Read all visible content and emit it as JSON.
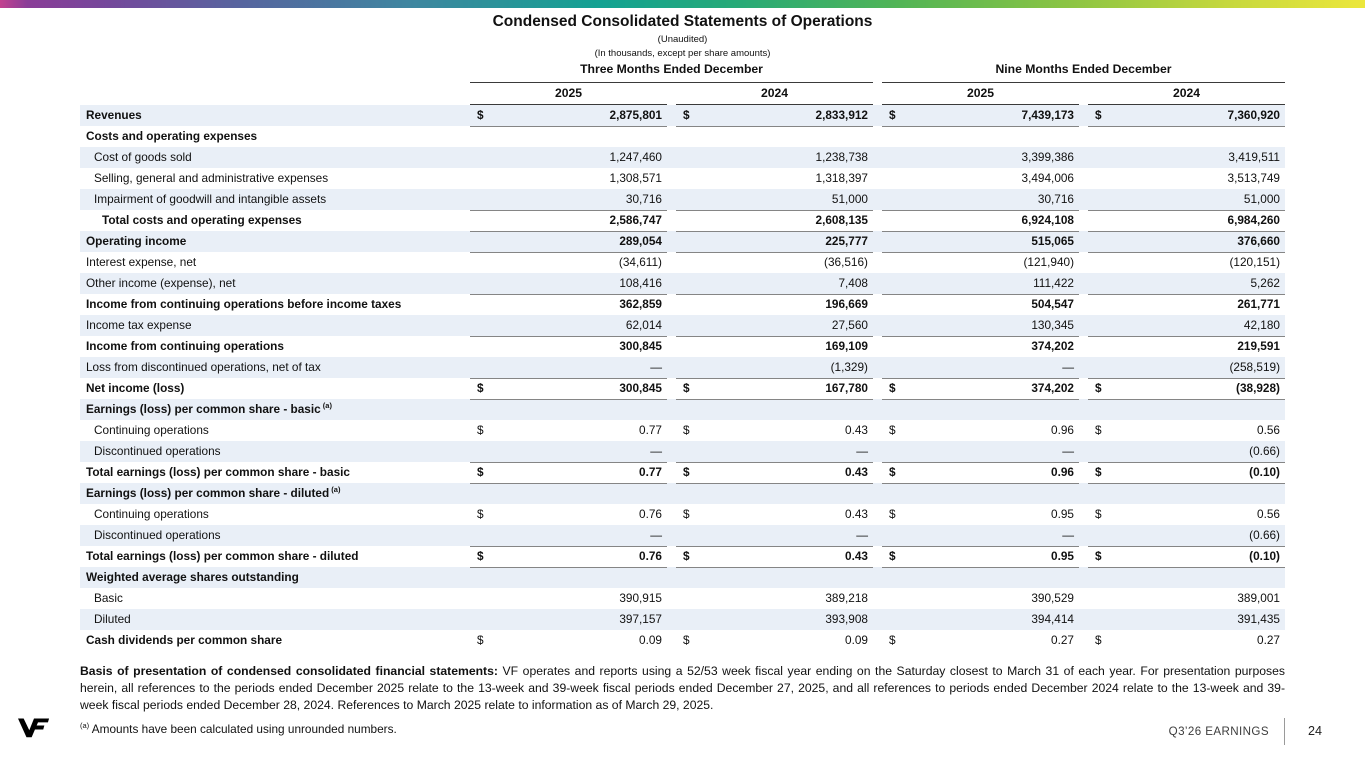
{
  "colors": {
    "stripe_blue": "#e9eff7",
    "rule_dark": "#3a3a3a",
    "rule_gray": "#858585",
    "gradient_stops": [
      "#c2408f",
      "#74489b",
      "#3f86a0",
      "#13a292",
      "#52b556",
      "#c6d83e",
      "#ece73c"
    ]
  },
  "header": {
    "title": "Condensed Consolidated Statements of Operations",
    "subtitle1": "(Unaudited)",
    "subtitle2": "(In thousands, except per share amounts)"
  },
  "table": {
    "groups": [
      {
        "label": "Three Months Ended December",
        "years": [
          "2025",
          "2024"
        ]
      },
      {
        "label": "Nine Months Ended December",
        "years": [
          "2025",
          "2024"
        ]
      }
    ],
    "rows": [
      {
        "label": "Revenues",
        "indent": 0,
        "bold": "both",
        "usd": true,
        "bb": true,
        "values": [
          "2,875,801",
          "2,833,912",
          "7,439,173",
          "7,360,920"
        ]
      },
      {
        "label": "Costs and operating expenses",
        "indent": 0,
        "bold": "label",
        "values": []
      },
      {
        "label": "Cost of goods sold",
        "indent": 1,
        "values": [
          "1,247,460",
          "1,238,738",
          "3,399,386",
          "3,419,511"
        ]
      },
      {
        "label": "Selling, general and administrative expenses",
        "indent": 1,
        "values": [
          "1,308,571",
          "1,318,397",
          "3,494,006",
          "3,513,749"
        ]
      },
      {
        "label": "Impairment of goodwill and intangible assets",
        "indent": 1,
        "bb": true,
        "values": [
          "30,716",
          "51,000",
          "30,716",
          "51,000"
        ]
      },
      {
        "label": "Total costs and operating expenses",
        "indent": 2,
        "bold": "both",
        "bb": true,
        "values": [
          "2,586,747",
          "2,608,135",
          "6,924,108",
          "6,984,260"
        ]
      },
      {
        "label": "Operating income",
        "indent": 0,
        "bold": "both",
        "bb": true,
        "values": [
          "289,054",
          "225,777",
          "515,065",
          "376,660"
        ]
      },
      {
        "label": "Interest expense, net",
        "indent": 0,
        "values": [
          "(34,611)",
          "(36,516)",
          "(121,940)",
          "(120,151)"
        ]
      },
      {
        "label": "Other income (expense), net",
        "indent": 0,
        "bb": true,
        "values": [
          "108,416",
          "7,408",
          "111,422",
          "5,262"
        ]
      },
      {
        "label": "Income from continuing operations before income taxes",
        "indent": 0,
        "bold": "both",
        "values": [
          "362,859",
          "196,669",
          "504,547",
          "261,771"
        ]
      },
      {
        "label": "Income tax expense",
        "indent": 0,
        "bb": true,
        "values": [
          "62,014",
          "27,560",
          "130,345",
          "42,180"
        ]
      },
      {
        "label": "Income from continuing operations",
        "indent": 0,
        "bold": "both",
        "values": [
          "300,845",
          "169,109",
          "374,202",
          "219,591"
        ]
      },
      {
        "label": "Loss from discontinued operations, net of tax",
        "indent": 0,
        "bb": true,
        "values": [
          "—",
          "(1,329)",
          "—",
          "(258,519)"
        ]
      },
      {
        "label": "Net income (loss)",
        "indent": 0,
        "bold": "both",
        "usd": true,
        "bb": true,
        "values": [
          "300,845",
          "167,780",
          "374,202",
          "(38,928)"
        ]
      },
      {
        "label": "Earnings (loss) per common share - basic",
        "sup": "(a)",
        "indent": 0,
        "bold": "label",
        "values": []
      },
      {
        "label": "Continuing operations",
        "indent": 1,
        "usd": true,
        "values": [
          "0.77",
          "0.43",
          "0.96",
          "0.56"
        ]
      },
      {
        "label": "Discontinued operations",
        "indent": 1,
        "bb": true,
        "values": [
          "—",
          "—",
          "—",
          "(0.66)"
        ]
      },
      {
        "label": "Total earnings (loss) per common share - basic",
        "indent": 0,
        "bold": "both",
        "usd": true,
        "bb": true,
        "values": [
          "0.77",
          "0.43",
          "0.96",
          "(0.10)"
        ]
      },
      {
        "label": "Earnings (loss) per common share - diluted",
        "sup": "(a)",
        "indent": 0,
        "bold": "label",
        "values": []
      },
      {
        "label": "Continuing operations",
        "indent": 1,
        "usd": true,
        "values": [
          "0.76",
          "0.43",
          "0.95",
          "0.56"
        ]
      },
      {
        "label": "Discontinued operations",
        "indent": 1,
        "bb": true,
        "values": [
          "—",
          "—",
          "—",
          "(0.66)"
        ]
      },
      {
        "label": "Total earnings (loss) per common share - diluted",
        "indent": 0,
        "bold": "both",
        "usd": true,
        "bb": true,
        "values": [
          "0.76",
          "0.43",
          "0.95",
          "(0.10)"
        ]
      },
      {
        "label": "Weighted average shares outstanding",
        "indent": 0,
        "bold": "label",
        "values": []
      },
      {
        "label": "Basic",
        "indent": 1,
        "values": [
          "390,915",
          "389,218",
          "390,529",
          "389,001"
        ]
      },
      {
        "label": "Diluted",
        "indent": 1,
        "values": [
          "397,157",
          "393,908",
          "394,414",
          "391,435"
        ]
      },
      {
        "label": "Cash dividends per common share",
        "indent": 0,
        "bold": "label",
        "usd": true,
        "values": [
          "0.09",
          "0.09",
          "0.27",
          "0.27"
        ]
      }
    ]
  },
  "footer": {
    "basis_bold": "Basis of presentation of condensed consolidated financial statements:",
    "basis_text": " VF operates and reports using a 52/53 week fiscal year ending on the Saturday closest to March 31 of each year. For presentation purposes herein, all references to the periods ended December 2025 relate to the 13-week and 39-week fiscal periods ended December 27, 2025, and all references to periods ended December 2024 relate to the 13-week and 39-week fiscal periods ended December 28, 2024. References to March 2025 relate to information as of March 29, 2025.",
    "footnote_marker": "(a)",
    "footnote_text": " Amounts have been calculated using unrounded numbers.",
    "earnings_label": "Q3’26 EARNINGS",
    "page_number": "24"
  }
}
